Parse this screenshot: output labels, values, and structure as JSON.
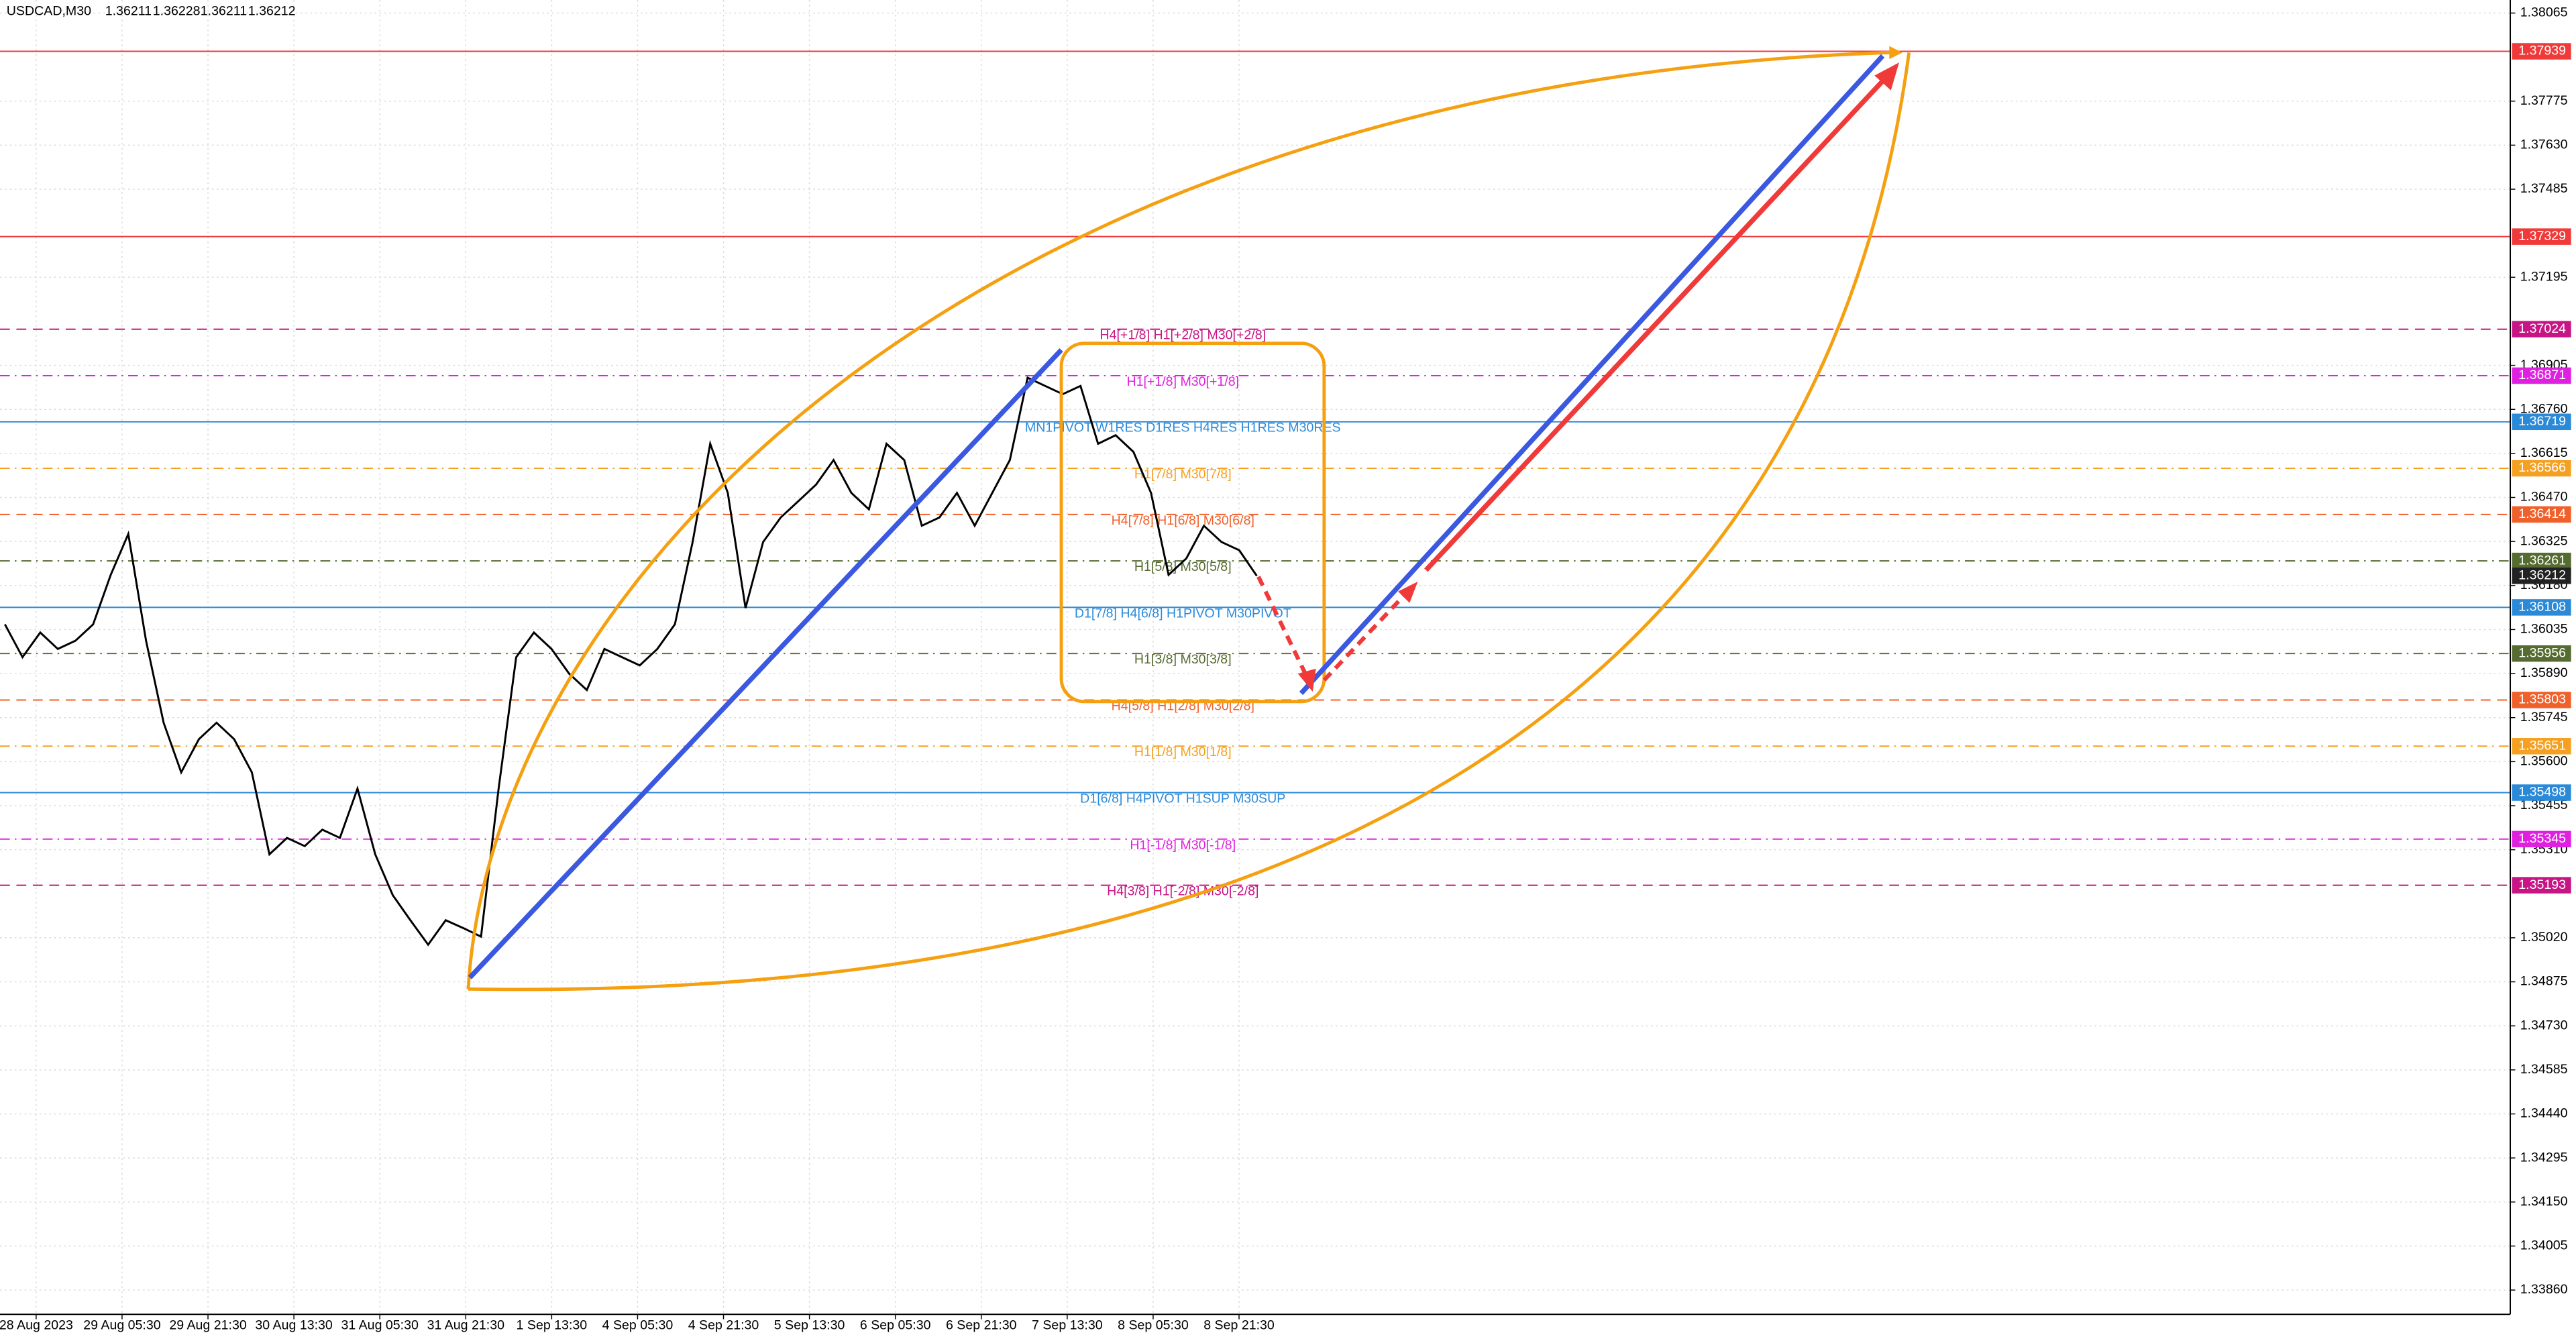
{
  "chart_data": {
    "type": "line",
    "title": "USDCAD,M30",
    "ohlc": [
      1.36211,
      1.36228,
      1.36211,
      1.36212
    ],
    "x_labels": [
      "28 Aug 2023",
      "29 Aug 05:30",
      "29 Aug 21:30",
      "30 Aug 13:30",
      "31 Aug 05:30",
      "31 Aug 21:30",
      "1 Sep 13:30",
      "4 Sep 05:30",
      "4 Sep 21:30",
      "5 Sep 13:30",
      "6 Sep 05:30",
      "6 Sep 21:30",
      "7 Sep 13:30",
      "8 Sep 05:30",
      "8 Sep 21:30"
    ],
    "series": [
      {
        "color": "#000000",
        "values": [
          1.36052,
          1.35944,
          1.36025,
          1.35971,
          1.35998,
          1.36052,
          1.36215,
          1.3635,
          1.35998,
          1.35728,
          1.35565,
          1.35674,
          1.35728,
          1.35674,
          1.35565,
          1.35295,
          1.35349,
          1.35322,
          1.35376,
          1.35349,
          1.35511,
          1.35295,
          1.3516,
          1.35078,
          1.34997,
          1.35078,
          1.35052,
          1.35024,
          1.35511,
          1.35944,
          1.36025,
          1.35971,
          1.3589,
          1.35836,
          1.35971,
          1.35944,
          1.35917,
          1.35971,
          1.36052,
          1.36323,
          1.36647,
          1.36485,
          1.36106,
          1.36323,
          1.36404,
          1.36458,
          1.36512,
          1.36593,
          1.36485,
          1.36431,
          1.36647,
          1.36593,
          1.36377,
          1.36404,
          1.36485,
          1.36377,
          1.36485,
          1.36593,
          1.36864,
          1.36837,
          1.3681,
          1.36837,
          1.36647,
          1.36675,
          1.3662,
          1.36485,
          1.36215,
          1.36269,
          1.36377,
          1.36323,
          1.36296,
          1.36212
        ]
      }
    ],
    "ylim": [
      1.3378,
      1.38108
    ],
    "yticks": [
      1.38065,
      1.37775,
      {
        "value": 1.3763,
        "label": "1.37630"
      },
      1.37485,
      1.37195,
      1.36905,
      {
        "value": 1.3676,
        "label": "1.36760"
      },
      1.36615,
      {
        "value": 1.3647,
        "label": "1.36470"
      },
      1.36325,
      {
        "value": 1.3618,
        "label": "1.36180"
      },
      1.36035,
      {
        "value": 1.3589,
        "label": "1.35890"
      },
      1.35745,
      {
        "value": 1.356,
        "label": "1.35600"
      },
      1.35455,
      {
        "value": 1.3531,
        "label": "1.35310"
      },
      {
        "value": 1.3502,
        "label": "1.35020"
      },
      1.34875,
      {
        "value": 1.3473,
        "label": "1.34730"
      },
      1.34585,
      {
        "value": 1.3444,
        "label": "1.34440"
      },
      1.34295,
      {
        "value": 1.3415,
        "label": "1.34150"
      },
      1.34005,
      {
        "value": 1.3386,
        "label": "1.33860"
      }
    ],
    "grid": true,
    "levels": [
      {
        "value": 1.37939,
        "color": "#f03a3a",
        "style": "solid"
      },
      {
        "value": 1.37329,
        "color": "#f03a3a",
        "style": "solid"
      },
      {
        "value": 1.37024,
        "name": "H4[+1/8] H1[+2/8] M30[+2/8]",
        "color": "#c71585",
        "style": "dashed"
      },
      {
        "value": 1.36871,
        "name": "H1[+1/8] M30[+1/8]",
        "color": "#e020e0",
        "style": "dashdot"
      },
      {
        "value": 1.36719,
        "name": "MN1PIVOT W1RES D1RES H4RES H1RES M30RES",
        "color": "#2b8ad8",
        "style": "solid"
      },
      {
        "value": 1.36566,
        "name": "H1[7/8] M30[7/8]",
        "color": "#f5a020",
        "style": "dashdot"
      },
      {
        "value": 1.36414,
        "name": "H4[7/8] H1[6/8] M30[6/8]",
        "color": "#f0602a",
        "style": "dashed"
      },
      {
        "value": 1.36261,
        "name": "H1[5/8] M30[5/8]",
        "color": "#556b2f",
        "style": "dashdot"
      },
      {
        "value": 1.36108,
        "name": "D1[7/8] H4[6/8] H1PIVOT M30PIVOT",
        "color": "#2b8ad8",
        "style": "solid"
      },
      {
        "value": 1.35956,
        "name": "H1[3/8] M30[3/8]",
        "color": "#556b2f",
        "style": "dashdot"
      },
      {
        "value": 1.35803,
        "name": "H4[5/8] H1[2/8] M30[2/8]",
        "color": "#f0602a",
        "style": "dashed"
      },
      {
        "value": 1.35651,
        "name": "H1[1/8] M30[1/8]",
        "color": "#f5a020",
        "style": "dashdot"
      },
      {
        "value": 1.35498,
        "name": "D1[6/8] H4PIVOT H1SUP M30SUP",
        "color": "#2b8ad8",
        "style": "solid"
      },
      {
        "value": 1.35345,
        "name": "H1[-1/8] M30[-1/8]",
        "color": "#e020e0",
        "style": "dashdot"
      },
      {
        "value": 1.35193,
        "name": "H4[3/8] H1[-2/8] M30[-2/8]",
        "color": "#c71585",
        "style": "dashed"
      }
    ]
  }
}
